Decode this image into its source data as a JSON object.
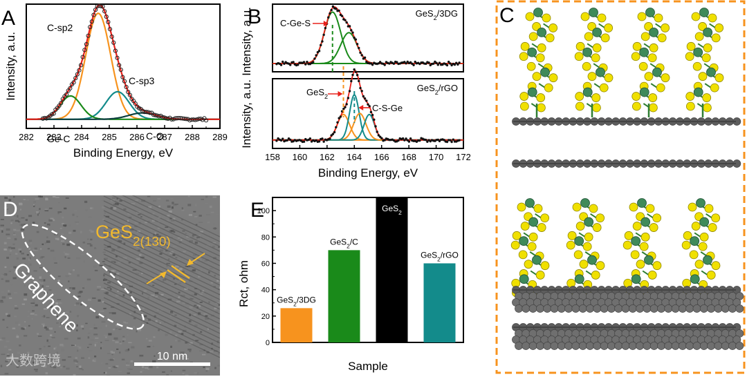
{
  "panels": {
    "a": {
      "letter": "A"
    },
    "b": {
      "letter": "B"
    },
    "c": {
      "letter": "C"
    },
    "d": {
      "letter": "D"
    },
    "e": {
      "letter": "E"
    }
  },
  "watermark": "大数跨境",
  "tem": {
    "phase_label": "GeS",
    "phase_sub": "2(130)",
    "region_label": "Graphene",
    "scale_bar": "10 nm"
  },
  "colors": {
    "orange": "#f7931e",
    "green": "#1a8a1a",
    "teal": "#138b8b",
    "red": "#e8201a",
    "black": "#000000"
  },
  "chart_data": [
    {
      "id": "A",
      "type": "line",
      "xlabel": "Binding Energy, eV",
      "ylabel": "Intensity, a.u.",
      "xlim": [
        282,
        289
      ],
      "x_ticks": [
        "282",
        "283",
        "284",
        "285",
        "286",
        "287",
        "288",
        "289"
      ],
      "series": [
        {
          "name": "C-sp2",
          "color": "#f7931e",
          "center": 284.6,
          "amplitude": 1.0,
          "width": 0.45
        },
        {
          "name": "C-sp3",
          "color": "#138b8b",
          "center": 285.3,
          "amplitude": 0.26,
          "width": 0.42
        },
        {
          "name": "Ge-C",
          "color": "#1a8a1a",
          "center": 283.6,
          "amplitude": 0.22,
          "width": 0.38
        },
        {
          "name": "C-O",
          "color": "#0a3d3d",
          "center": 286.2,
          "amplitude": 0.06,
          "width": 0.5
        }
      ],
      "annotations": [
        "C-sp2",
        "C-sp3",
        "Ge-C",
        "C-O"
      ]
    },
    {
      "id": "B",
      "type": "line",
      "xlabel": "Binding Energy, eV",
      "ylabel": "Intensity, a.u.",
      "xlim": [
        158,
        172
      ],
      "x_ticks": [
        "158",
        "160",
        "162",
        "164",
        "166",
        "168",
        "170",
        "172"
      ],
      "subplots": [
        {
          "title": "GeS₂/3DG",
          "series": [
            {
              "name": "C-Ge-S",
              "color": "#1a8a1a",
              "center": 162.4,
              "amplitude": 1.0,
              "width": 0.6
            },
            {
              "name": "",
              "color": "#1a8a1a",
              "center": 163.6,
              "amplitude": 0.6,
              "width": 0.6
            }
          ],
          "annotations": [
            "C-Ge-S"
          ]
        },
        {
          "title": "GeS₂/rGO",
          "series": [
            {
              "name": "GeS₂",
              "color": "#f7931e",
              "center": 163.2,
              "amplitude": 0.48,
              "width": 0.45
            },
            {
              "name": "",
              "color": "#138b8b",
              "center": 164.0,
              "amplitude": 0.85,
              "width": 0.35
            },
            {
              "name": "",
              "color": "#f7931e",
              "center": 164.4,
              "amplitude": 0.5,
              "width": 0.45
            },
            {
              "name": "C-S-Ge",
              "color": "#138b8b",
              "center": 165.1,
              "amplitude": 0.48,
              "width": 0.38
            }
          ],
          "annotations": [
            "GeS₂",
            "C-S-Ge"
          ]
        }
      ]
    },
    {
      "id": "E",
      "type": "bar",
      "xlabel": "Sample",
      "ylabel": "Rct, ohm",
      "ylim": [
        0,
        110
      ],
      "y_ticks": [
        0,
        20,
        40,
        60,
        80,
        100
      ],
      "categories": [
        "GeS₂/3DG",
        "GeS₂/C",
        "GeS₂",
        "GeS₂/rGO"
      ],
      "values": [
        26,
        70,
        110,
        60
      ],
      "bar_colors": [
        "#f7931e",
        "#1a8a1a",
        "#000000",
        "#138b8b"
      ]
    }
  ]
}
